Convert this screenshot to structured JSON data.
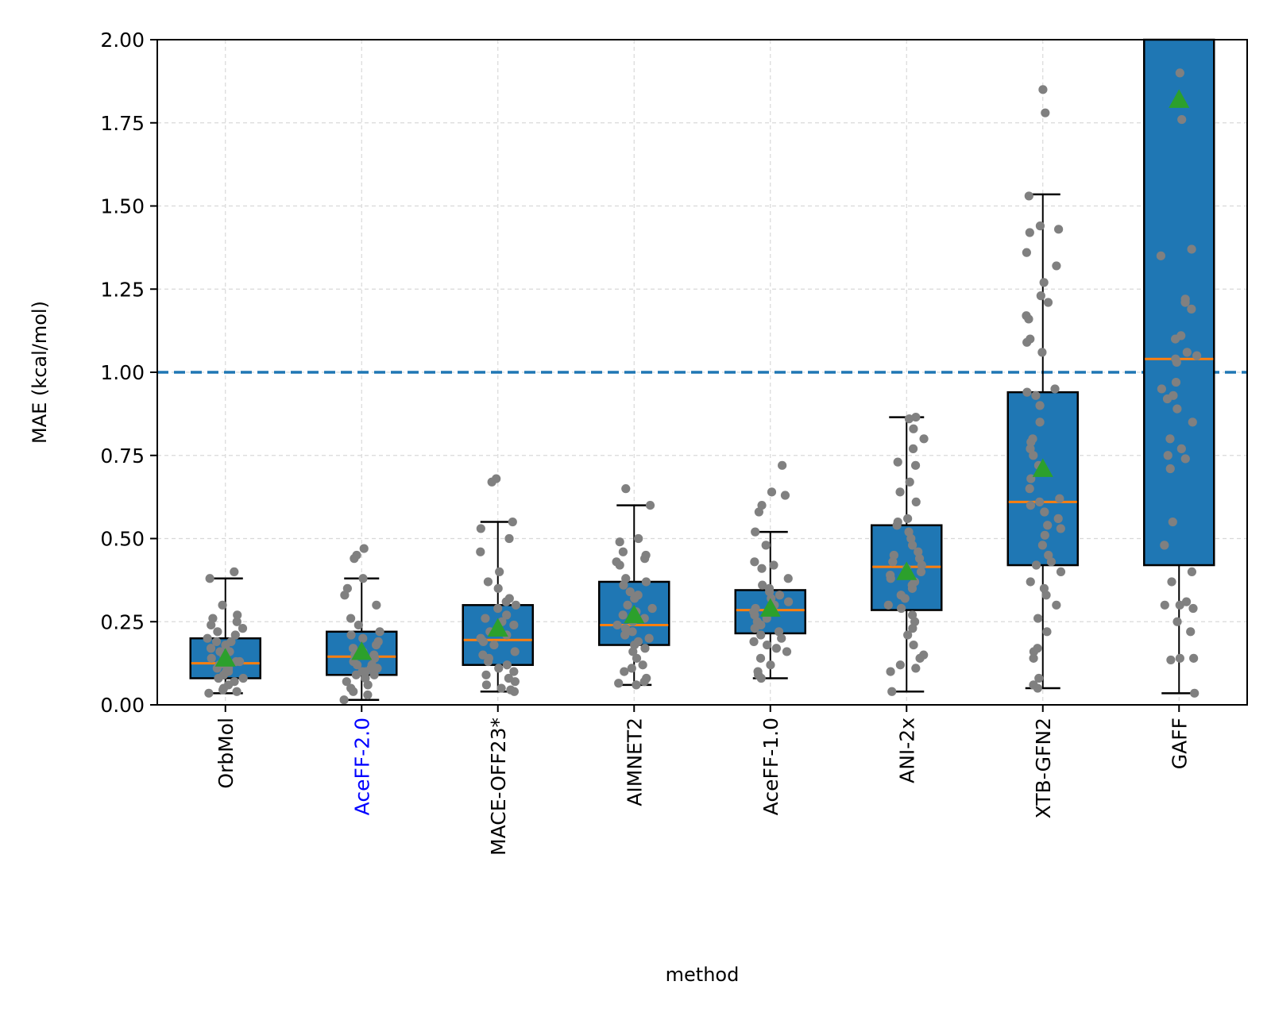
{
  "chart_data": {
    "type": "box",
    "title": "",
    "xlabel": "method",
    "ylabel": "MAE (kcal/mol)",
    "ylim": [
      0,
      2.0
    ],
    "yticks": [
      "0.00",
      "0.25",
      "0.50",
      "0.75",
      "1.00",
      "1.25",
      "1.50",
      "1.75",
      "2.00"
    ],
    "grid": true,
    "reference_line": {
      "y": 1.0,
      "style": "dashed"
    },
    "colors": {
      "box": "#1f77b4",
      "median": "#ff7f0e",
      "mean_marker": "#2ca02c",
      "points": "#808080",
      "reference_line": "#1f77b4",
      "highlight_label": "#0000ff",
      "grid": "#d9d9d9"
    },
    "categories": [
      "OrbMol",
      "AceFF-2.0",
      "MACE-OFF23*",
      "AIMNET2",
      "AceFF-1.0",
      "ANI-2x",
      "XTB-GFN2",
      "GAFF"
    ],
    "highlight_categories": [
      "AceFF-2.0"
    ],
    "boxes": [
      {
        "name": "OrbMol",
        "q1": 0.08,
        "median": 0.125,
        "q3": 0.2,
        "whisker_low": 0.035,
        "whisker_high": 0.38,
        "mean": 0.14
      },
      {
        "name": "AceFF-2.0",
        "q1": 0.09,
        "median": 0.145,
        "q3": 0.22,
        "whisker_low": 0.015,
        "whisker_high": 0.38,
        "mean": 0.16
      },
      {
        "name": "MACE-OFF23*",
        "q1": 0.12,
        "median": 0.195,
        "q3": 0.3,
        "whisker_low": 0.04,
        "whisker_high": 0.55,
        "mean": 0.23
      },
      {
        "name": "AIMNET2",
        "q1": 0.18,
        "median": 0.24,
        "q3": 0.37,
        "whisker_low": 0.06,
        "whisker_high": 0.6,
        "mean": 0.27
      },
      {
        "name": "AceFF-1.0",
        "q1": 0.215,
        "median": 0.285,
        "q3": 0.345,
        "whisker_low": 0.08,
        "whisker_high": 0.52,
        "mean": 0.29
      },
      {
        "name": "ANI-2x",
        "q1": 0.285,
        "median": 0.415,
        "q3": 0.54,
        "whisker_low": 0.04,
        "whisker_high": 0.865,
        "mean": 0.4
      },
      {
        "name": "XTB-GFN2",
        "q1": 0.42,
        "median": 0.61,
        "q3": 0.94,
        "whisker_low": 0.05,
        "whisker_high": 1.535,
        "mean": 0.71
      },
      {
        "name": "GAFF",
        "q1": 0.42,
        "median": 1.04,
        "q3": 2.0,
        "whisker_low": 0.035,
        "whisker_high": 2.0,
        "mean": 1.82
      }
    ],
    "points": [
      [
        0.4,
        0.38,
        0.3,
        0.27,
        0.26,
        0.25,
        0.24,
        0.23,
        0.22,
        0.21,
        0.2,
        0.19,
        0.19,
        0.18,
        0.17,
        0.16,
        0.16,
        0.15,
        0.15,
        0.14,
        0.13,
        0.13,
        0.12,
        0.12,
        0.11,
        0.11,
        0.1,
        0.1,
        0.09,
        0.08,
        0.08,
        0.07,
        0.06,
        0.05,
        0.045,
        0.04,
        0.035
      ],
      [
        0.47,
        0.45,
        0.44,
        0.38,
        0.35,
        0.33,
        0.3,
        0.26,
        0.24,
        0.22,
        0.21,
        0.2,
        0.19,
        0.18,
        0.17,
        0.16,
        0.15,
        0.15,
        0.14,
        0.13,
        0.12,
        0.12,
        0.11,
        0.11,
        0.1,
        0.1,
        0.09,
        0.09,
        0.08,
        0.07,
        0.06,
        0.05,
        0.04,
        0.03,
        0.015
      ],
      [
        0.68,
        0.67,
        0.55,
        0.53,
        0.5,
        0.46,
        0.4,
        0.37,
        0.35,
        0.32,
        0.31,
        0.3,
        0.29,
        0.27,
        0.26,
        0.25,
        0.24,
        0.22,
        0.21,
        0.2,
        0.19,
        0.18,
        0.16,
        0.15,
        0.14,
        0.13,
        0.12,
        0.11,
        0.1,
        0.09,
        0.08,
        0.07,
        0.06,
        0.05,
        0.045,
        0.04
      ],
      [
        0.65,
        0.6,
        0.5,
        0.49,
        0.46,
        0.45,
        0.44,
        0.43,
        0.42,
        0.38,
        0.37,
        0.36,
        0.34,
        0.33,
        0.32,
        0.3,
        0.29,
        0.28,
        0.27,
        0.26,
        0.25,
        0.24,
        0.23,
        0.22,
        0.21,
        0.2,
        0.19,
        0.18,
        0.17,
        0.16,
        0.14,
        0.12,
        0.11,
        0.1,
        0.08,
        0.07,
        0.065,
        0.06
      ],
      [
        0.72,
        0.64,
        0.63,
        0.6,
        0.58,
        0.52,
        0.48,
        0.43,
        0.42,
        0.41,
        0.38,
        0.36,
        0.35,
        0.34,
        0.33,
        0.32,
        0.31,
        0.3,
        0.29,
        0.28,
        0.28,
        0.27,
        0.26,
        0.25,
        0.24,
        0.23,
        0.22,
        0.21,
        0.2,
        0.19,
        0.18,
        0.17,
        0.16,
        0.14,
        0.12,
        0.1,
        0.09,
        0.08
      ],
      [
        0.865,
        0.86,
        0.83,
        0.8,
        0.77,
        0.73,
        0.72,
        0.67,
        0.64,
        0.61,
        0.56,
        0.55,
        0.54,
        0.52,
        0.5,
        0.48,
        0.46,
        0.45,
        0.44,
        0.43,
        0.42,
        0.41,
        0.4,
        0.39,
        0.38,
        0.37,
        0.36,
        0.35,
        0.33,
        0.32,
        0.3,
        0.29,
        0.27,
        0.25,
        0.23,
        0.21,
        0.18,
        0.15,
        0.14,
        0.12,
        0.11,
        0.1,
        0.04
      ],
      [
        1.85,
        1.78,
        1.53,
        1.44,
        1.43,
        1.42,
        1.36,
        1.32,
        1.27,
        1.23,
        1.21,
        1.17,
        1.16,
        1.1,
        1.09,
        1.06,
        0.95,
        0.94,
        0.93,
        0.9,
        0.85,
        0.8,
        0.79,
        0.77,
        0.75,
        0.72,
        0.7,
        0.68,
        0.65,
        0.62,
        0.61,
        0.6,
        0.58,
        0.56,
        0.54,
        0.53,
        0.51,
        0.48,
        0.45,
        0.43,
        0.42,
        0.4,
        0.37,
        0.35,
        0.33,
        0.3,
        0.26,
        0.22,
        0.17,
        0.16,
        0.14,
        0.08,
        0.06,
        0.05
      ],
      [
        1.9,
        1.76,
        1.37,
        1.35,
        1.22,
        1.21,
        1.19,
        1.11,
        1.1,
        1.06,
        1.05,
        1.04,
        1.03,
        0.97,
        0.95,
        0.93,
        0.92,
        0.89,
        0.85,
        0.8,
        0.77,
        0.75,
        0.74,
        0.71,
        0.55,
        0.48,
        0.4,
        0.37,
        0.31,
        0.3,
        0.3,
        0.29,
        0.25,
        0.22,
        0.14,
        0.14,
        0.135,
        0.035
      ]
    ]
  }
}
